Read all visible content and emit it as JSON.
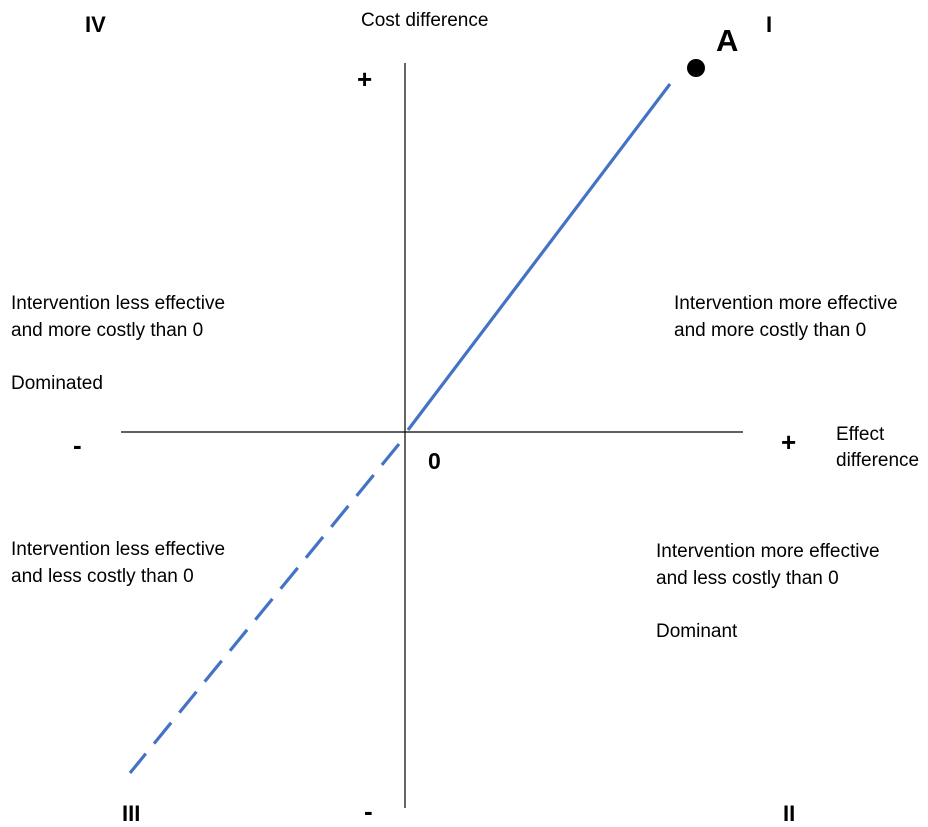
{
  "axes": {
    "y_title": "Cost difference",
    "x_title_line1": "Effect",
    "x_title_line2": "difference",
    "y_plus": "+",
    "y_minus": "-",
    "x_plus": "+",
    "x_minus": "-",
    "origin": "0"
  },
  "quadrants": {
    "I": {
      "numeral": "I",
      "line1": "Intervention more effective",
      "line2": "and more costly than 0",
      "note": ""
    },
    "II": {
      "numeral": "II",
      "line1": "Intervention more effective",
      "line2": "and less costly than 0",
      "note": "Dominant"
    },
    "III": {
      "numeral": "III",
      "line1": "Intervention less effective",
      "line2": "and less costly than 0",
      "note": ""
    },
    "IV": {
      "numeral": "IV",
      "line1": "Intervention less effective",
      "line2": "and more costly than 0",
      "note": "Dominated"
    }
  },
  "point": {
    "label": "A"
  },
  "colors": {
    "line": "#4472C4",
    "axis": "#000000"
  }
}
